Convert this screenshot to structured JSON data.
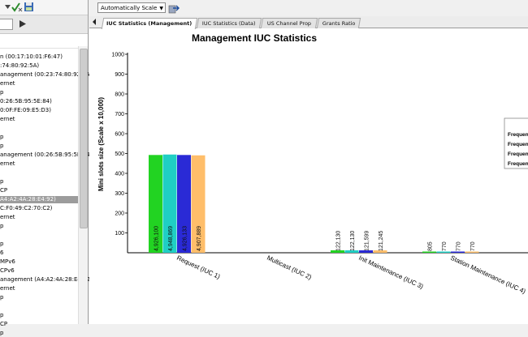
{
  "toolbar": {
    "scale_label": "Automatically Scale"
  },
  "tabs": [
    {
      "label": "IUC Statistics (Management)"
    },
    {
      "label": "IUC Statistics (Data)"
    },
    {
      "label": "US Channel Prop"
    },
    {
      "label": "Grants Ratio"
    }
  ],
  "tree": {
    "items": [
      {
        "text": "n (00:17:10:01:F6:47)"
      },
      {
        "text": ":74:80:92:5A)"
      },
      {
        "text": "anagement (00:23:74:80:92:5A)"
      },
      {
        "text": "ernet"
      },
      {
        "text": "p"
      },
      {
        "text": "0:26:5B:95:5E:84)"
      },
      {
        "text": "0:0F:FE:09:E5:D3)"
      },
      {
        "text": "ernet"
      },
      {
        "text": ""
      },
      {
        "text": "p"
      },
      {
        "text": "p"
      },
      {
        "text": "anagement (00:26:5B:95:5E:84)"
      },
      {
        "text": "ernet"
      },
      {
        "text": ""
      },
      {
        "text": "p"
      },
      {
        "text": "CP"
      },
      {
        "text": "A4:A2:4A:28:E4:92)",
        "selected": true
      },
      {
        "text": "C:F0:49:C2:70:C2)"
      },
      {
        "text": "ernet"
      },
      {
        "text": "p"
      },
      {
        "text": ""
      },
      {
        "text": "p"
      },
      {
        "text": "6"
      },
      {
        "text": "MPv6"
      },
      {
        "text": "CPv6"
      },
      {
        "text": "anagement (A4:A2:4A:28:E4:92"
      },
      {
        "text": "ernet"
      },
      {
        "text": "p"
      },
      {
        "text": ""
      },
      {
        "text": "p"
      },
      {
        "text": "CP"
      },
      {
        "text": "p"
      }
    ]
  },
  "chart_data": {
    "type": "bar",
    "title": "Management IUC Statistics",
    "ylabel": "Mini slots size (Scale x 10,000)",
    "xlabel": "",
    "ylim": [
      0,
      1000
    ],
    "yticks": [
      100,
      200,
      300,
      400,
      500,
      600,
      700,
      800,
      900,
      1000
    ],
    "grid": false,
    "legend_position": "right",
    "legend_entries": [
      "Frequen",
      "Frequen",
      "Frequen",
      "Frequen"
    ],
    "categories": [
      "Request (IUC 1)",
      "Multicast (IUC 2)",
      "Init Maintenance (IUC 3)",
      "Station Maintenance (IUC 4)"
    ],
    "series_colors": [
      "#22d322",
      "#1fcfc4",
      "#2a2ad6",
      "#ffbe6a"
    ],
    "series": [
      {
        "values": [
          492.61,
          0,
          12.213,
          0.0805
        ],
        "labels": [
          "4,926,100",
          "",
          "122,130",
          "805"
        ]
      },
      {
        "values": [
          494.8869,
          0,
          12.213,
          0.077
        ],
        "labels": [
          "4,948,869",
          "",
          "122,130",
          "770"
        ]
      },
      {
        "values": [
          492.6133,
          0,
          12.1599,
          0.077
        ],
        "labels": [
          "4,926,133",
          "",
          "121,599",
          "770"
        ]
      },
      {
        "values": [
          490.7889,
          0,
          12.1245,
          0.077
        ],
        "labels": [
          "4,907,889",
          "",
          "121,245",
          "770"
        ]
      }
    ]
  }
}
